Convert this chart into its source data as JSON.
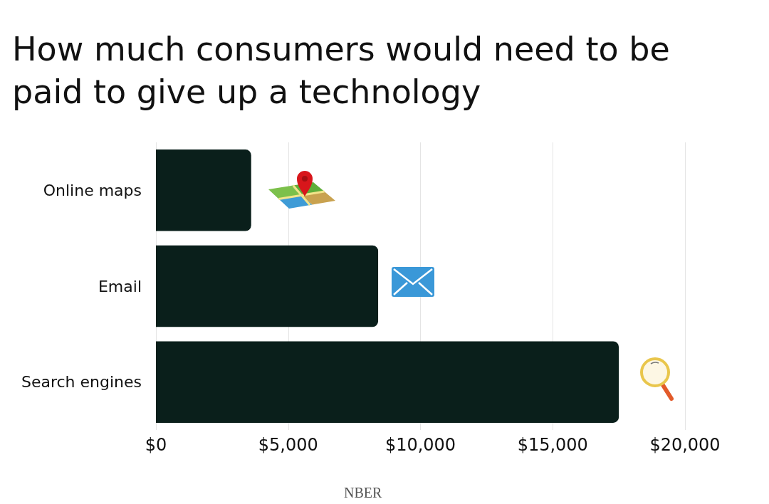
{
  "chart_data": {
    "type": "bar",
    "orientation": "horizontal",
    "title": "How much consumers would need to be paid to give up a technology",
    "categories": [
      "Online maps",
      "Email",
      "Search engines"
    ],
    "values": [
      3600,
      8400,
      17500
    ],
    "color": "#0a1f1b",
    "xlim": [
      0,
      20000
    ],
    "xticks": [
      {
        "value": 0,
        "label": "$0"
      },
      {
        "value": 5000,
        "label": "$5,000"
      },
      {
        "value": 10000,
        "label": "$10,000"
      },
      {
        "value": 15000,
        "label": "$15,000"
      },
      {
        "value": 20000,
        "label": "$20,000"
      }
    ],
    "grid": "x",
    "annotations": [
      "NBER"
    ]
  }
}
